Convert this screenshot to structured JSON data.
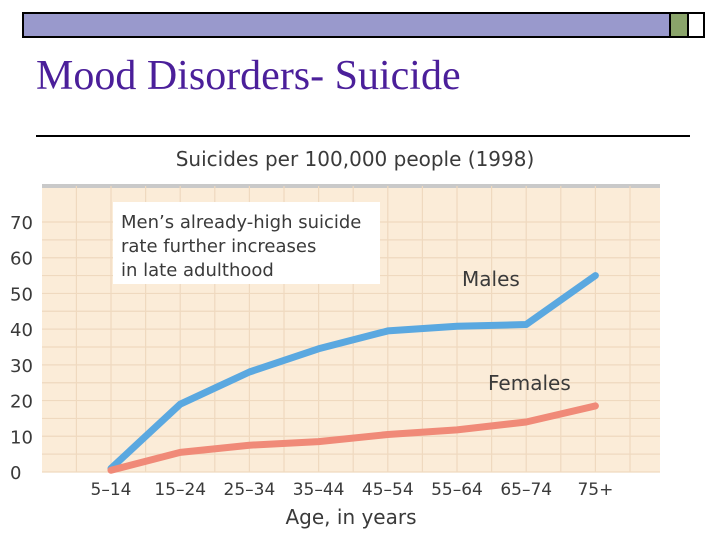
{
  "slide": {
    "title": "Mood Disorders- Suicide"
  },
  "colors": {
    "title": "#4b1f9a",
    "header_band": "#9999cc",
    "plot_bg": "#fbecd8",
    "males": "#5aa8e0",
    "females": "#f08a78"
  },
  "chart_data": {
    "type": "line",
    "title": "Suicides per 100,000 people (1998)",
    "xlabel": "Age, in years",
    "ylabel": "",
    "categories": [
      "5–14",
      "15–24",
      "25–34",
      "35–44",
      "45–54",
      "55–64",
      "65–74",
      "75+"
    ],
    "ylim": [
      0,
      70
    ],
    "yticks": [
      0,
      10,
      20,
      30,
      40,
      50,
      60,
      70
    ],
    "grid": true,
    "series": [
      {
        "name": "Males",
        "values": [
          1,
          19,
          28,
          34.5,
          39.5,
          40.8,
          41.3,
          55
        ]
      },
      {
        "name": "Females",
        "values": [
          0.5,
          5.5,
          7.5,
          8.5,
          10.5,
          11.8,
          14,
          18.5
        ]
      }
    ],
    "annotation": [
      "Men’s already-high suicide",
      "rate further increases",
      "in late adulthood"
    ]
  }
}
